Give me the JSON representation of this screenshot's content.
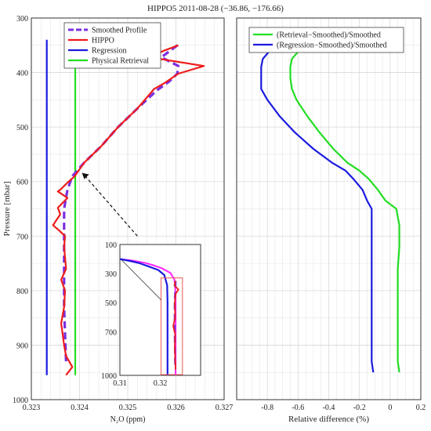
{
  "title": "HIPPO5    2011-08-28  (−36.86, −176.66)",
  "colors": {
    "smoothed": "#7b2fe0",
    "hippo": "#ee1c1c",
    "regression": "#1a1ae0",
    "physical": "#22dd22",
    "inset_magenta": "#ff22ff",
    "grid": "#d9d9d9"
  },
  "chart_data": [
    {
      "type": "line",
      "panel": "left",
      "xlabel": "N₂O (ppm)",
      "ylabel": "Pressure [mbar]",
      "xlim": [
        0.323,
        0.327
      ],
      "ylim": [
        300,
        1000
      ],
      "y_reversed": true,
      "xticks": [
        "0.323",
        "0.324",
        "0.325",
        "0.326",
        "0.327"
      ],
      "yticks": [
        "300",
        "400",
        "500",
        "600",
        "700",
        "800",
        "900",
        "1000"
      ],
      "xtick_values": [
        0.323,
        0.324,
        0.325,
        0.326,
        0.327
      ],
      "ytick_values": [
        300,
        400,
        500,
        600,
        700,
        800,
        900,
        1000
      ],
      "grid": true,
      "legend_position": "top-left",
      "series": [
        {
          "name": "Smoothed Profile",
          "style": "dashed",
          "color_key": "smoothed",
          "points": [
            [
              0.32603,
              350
            ],
            [
              0.32588,
              360
            ],
            [
              0.3257,
              372
            ],
            [
              0.32605,
              388
            ],
            [
              0.32603,
              402
            ],
            [
              0.32585,
              417
            ],
            [
              0.3256,
              433
            ],
            [
              0.3252,
              466
            ],
            [
              0.3248,
              500
            ],
            [
              0.32445,
              535
            ],
            [
              0.3241,
              565
            ],
            [
              0.32385,
              590
            ],
            [
              0.32375,
              615
            ],
            [
              0.32368,
              650
            ],
            [
              0.32368,
              700
            ],
            [
              0.32368,
              780
            ],
            [
              0.32368,
              830
            ],
            [
              0.3237,
              880
            ],
            [
              0.32372,
              930
            ]
          ]
        },
        {
          "name": "HIPPO",
          "style": "solid",
          "color_key": "hippo",
          "points": [
            [
              0.32605,
              350
            ],
            [
              0.32575,
              360
            ],
            [
              0.32545,
              372
            ],
            [
              0.32658,
              388
            ],
            [
              0.32605,
              402
            ],
            [
              0.32575,
              420
            ],
            [
              0.32555,
              430
            ],
            [
              0.3252,
              466
            ],
            [
              0.3248,
              500
            ],
            [
              0.32445,
              535
            ],
            [
              0.3241,
              565
            ],
            [
              0.3239,
              590
            ],
            [
              0.32375,
              602
            ],
            [
              0.3236,
              615
            ],
            [
              0.32355,
              618
            ],
            [
              0.32375,
              630
            ],
            [
              0.32355,
              648
            ],
            [
              0.3236,
              660
            ],
            [
              0.32345,
              680
            ],
            [
              0.32358,
              690
            ],
            [
              0.3237,
              700
            ],
            [
              0.32368,
              720
            ],
            [
              0.32372,
              760
            ],
            [
              0.32362,
              780
            ],
            [
              0.3237,
              800
            ],
            [
              0.32368,
              830
            ],
            [
              0.32362,
              860
            ],
            [
              0.32368,
              900
            ],
            [
              0.32372,
              920
            ],
            [
              0.32385,
              940
            ],
            [
              0.32372,
              955
            ]
          ]
        },
        {
          "name": "Regression",
          "style": "solid",
          "color_key": "regression",
          "points": [
            [
              0.32332,
              340
            ],
            [
              0.32332,
              955
            ]
          ]
        },
        {
          "name": "Physical Retrieval",
          "style": "solid",
          "color_key": "physical",
          "points": [
            [
              0.32391,
              340
            ],
            [
              0.32391,
              955
            ]
          ]
        }
      ]
    },
    {
      "type": "line",
      "panel": "inset",
      "xlim": [
        0.31,
        0.33
      ],
      "ylim": [
        100,
        1000
      ],
      "y_reversed": true,
      "xticks": [
        "0.31",
        "0.32"
      ],
      "yticks": [
        "100",
        "300",
        "500",
        "700",
        "1000"
      ],
      "xtick_values": [
        0.31,
        0.32
      ],
      "ytick_values": [
        100,
        300,
        500,
        700,
        1000
      ],
      "series": [
        {
          "color_key": "inset_magenta",
          "points": [
            [
              0.31,
              200
            ],
            [
              0.313,
              210
            ],
            [
              0.316,
              225
            ],
            [
              0.318,
              240
            ],
            [
              0.3205,
              265
            ],
            [
              0.3225,
              295
            ],
            [
              0.3235,
              340
            ],
            [
              0.3238,
              430
            ],
            [
              0.3238,
              1000
            ]
          ]
        },
        {
          "color_key": "regression",
          "points": [
            [
              0.31,
              200
            ],
            [
              0.3125,
              213
            ],
            [
              0.315,
              230
            ],
            [
              0.317,
              250
            ],
            [
              0.3195,
              275
            ],
            [
              0.321,
              310
            ],
            [
              0.3217,
              380
            ],
            [
              0.3218,
              500
            ],
            [
              0.3218,
              1000
            ]
          ]
        },
        {
          "color_key": "smoothed",
          "style": "dashed",
          "points": [
            [
              0.3238,
              350
            ],
            [
              0.3237,
              420
            ],
            [
              0.3236,
              500
            ],
            [
              0.3236,
              700
            ],
            [
              0.3237,
              950
            ]
          ]
        },
        {
          "color_key": "hippo",
          "points": [
            [
              0.3238,
              350
            ],
            [
              0.3235,
              380
            ],
            [
              0.3245,
              410
            ],
            [
              0.3238,
              440
            ],
            [
              0.3236,
              500
            ],
            [
              0.3237,
              600
            ],
            [
              0.3232,
              660
            ],
            [
              0.3237,
              720
            ],
            [
              0.3236,
              800
            ],
            [
              0.3237,
              900
            ],
            [
              0.3238,
              960
            ]
          ]
        }
      ]
    },
    {
      "type": "line",
      "panel": "right",
      "xlabel": "Relative difference (%)",
      "xlim": [
        -1.0,
        0.2
      ],
      "ylim": [
        300,
        1000
      ],
      "y_reversed": true,
      "xticks": [
        "-0.8",
        "-0.6",
        "-0.4",
        "-0.2",
        "0",
        "0.2"
      ],
      "xtick_values": [
        -0.8,
        -0.6,
        -0.4,
        -0.2,
        0,
        0.2
      ],
      "grid": true,
      "legend_position": "top-left",
      "series": [
        {
          "name": "(Retrieval−Smoothed)/Smoothed",
          "color_key": "physical",
          "points": [
            [
              -0.66,
              350
            ],
            [
              -0.6,
              362
            ],
            [
              -0.64,
              375
            ],
            [
              -0.65,
              390
            ],
            [
              -0.65,
              410
            ],
            [
              -0.64,
              430
            ],
            [
              -0.61,
              450
            ],
            [
              -0.54,
              480
            ],
            [
              -0.46,
              510
            ],
            [
              -0.37,
              540
            ],
            [
              -0.28,
              565
            ],
            [
              -0.2,
              580
            ],
            [
              -0.14,
              595
            ],
            [
              -0.08,
              615
            ],
            [
              -0.03,
              635
            ],
            [
              0.04,
              650
            ],
            [
              0.06,
              680
            ],
            [
              0.06,
              720
            ],
            [
              0.05,
              760
            ],
            [
              0.05,
              800
            ],
            [
              0.05,
              850
            ],
            [
              0.05,
              900
            ],
            [
              0.05,
              930
            ],
            [
              0.06,
              950
            ]
          ]
        },
        {
          "name": "(Regression−Smoothed)/Smoothed",
          "color_key": "regression",
          "points": [
            [
              -0.87,
              350
            ],
            [
              -0.79,
              362
            ],
            [
              -0.83,
              375
            ],
            [
              -0.84,
              390
            ],
            [
              -0.84,
              410
            ],
            [
              -0.84,
              430
            ],
            [
              -0.8,
              450
            ],
            [
              -0.72,
              480
            ],
            [
              -0.62,
              510
            ],
            [
              -0.5,
              540
            ],
            [
              -0.38,
              565
            ],
            [
              -0.29,
              580
            ],
            [
              -0.24,
              595
            ],
            [
              -0.18,
              615
            ],
            [
              -0.15,
              635
            ],
            [
              -0.12,
              650
            ],
            [
              -0.12,
              700
            ],
            [
              -0.12,
              760
            ],
            [
              -0.12,
              800
            ],
            [
              -0.12,
              850
            ],
            [
              -0.12,
              900
            ],
            [
              -0.12,
              930
            ],
            [
              -0.11,
              950
            ]
          ]
        }
      ]
    }
  ]
}
